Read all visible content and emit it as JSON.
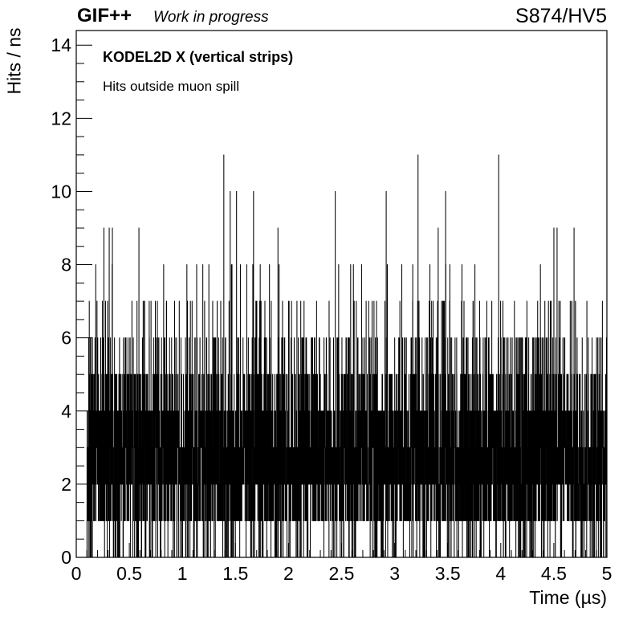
{
  "header": {
    "brand": "GIF++",
    "status": "Work in progress",
    "run": "S874/HV5"
  },
  "chart_data": {
    "type": "bar",
    "title": "KODEL2D X (vertical strips)",
    "subtitle": "Hits outside muon spill",
    "xlabel": "Time (µs)",
    "ylabel": "Hits / ns",
    "xlim": [
      0,
      5
    ],
    "ylim": [
      0,
      14.4
    ],
    "bin_width_us": 0.001,
    "bins_filled": [
      0.1,
      5.0
    ],
    "xticks": [
      "0",
      "0.5",
      "1",
      "1.5",
      "2",
      "2.5",
      "3",
      "3.5",
      "4",
      "4.5",
      "5"
    ],
    "yticks": [
      "0",
      "2",
      "4",
      "6",
      "8",
      "10",
      "12",
      "14"
    ],
    "typical_band": [
      1,
      4
    ],
    "peaks": [
      {
        "x": 0.26,
        "y": 9
      },
      {
        "x": 0.31,
        "y": 9
      },
      {
        "x": 0.34,
        "y": 9
      },
      {
        "x": 0.59,
        "y": 9
      },
      {
        "x": 1.39,
        "y": 11
      },
      {
        "x": 1.45,
        "y": 10
      },
      {
        "x": 1.51,
        "y": 10
      },
      {
        "x": 1.67,
        "y": 10
      },
      {
        "x": 1.9,
        "y": 9
      },
      {
        "x": 2.44,
        "y": 10
      },
      {
        "x": 2.92,
        "y": 10
      },
      {
        "x": 3.22,
        "y": 11
      },
      {
        "x": 3.41,
        "y": 9
      },
      {
        "x": 3.48,
        "y": 10
      },
      {
        "x": 3.98,
        "y": 11
      },
      {
        "x": 4.5,
        "y": 9
      },
      {
        "x": 4.53,
        "y": 9
      },
      {
        "x": 4.69,
        "y": 9
      }
    ],
    "grid": false,
    "legend": "none"
  }
}
